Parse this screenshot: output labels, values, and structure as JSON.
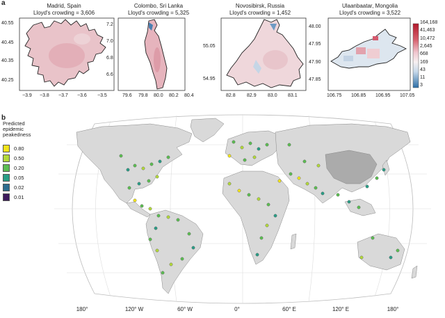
{
  "panel_a": {
    "letter": "a",
    "cities": [
      {
        "name": "Madrid, Spain",
        "crowding": "Lloyd's crowding = 3,606",
        "x_ticks": [
          "−3.9",
          "−3.8",
          "−3.7",
          "−3.6",
          "−3.5"
        ],
        "y_ticks": [
          "40.55",
          "40.45",
          "40.35",
          "40.25"
        ]
      },
      {
        "name": "Colombo, Sri Lanka",
        "crowding": "Lloyd's crowding = 5,325",
        "x_ticks": [
          "79.6",
          "79.8",
          "80.0",
          "80.2",
          "80.4"
        ],
        "y_ticks": [
          "7.2",
          "7.0",
          "6.8",
          "6.6"
        ]
      },
      {
        "name": "Novosibirsk, Russia",
        "crowding": "Lloyd's crowding = 1,452",
        "x_ticks": [
          "82.8",
          "82.9",
          "83.0",
          "83.1"
        ],
        "y_ticks": [
          "55.05",
          "54.95"
        ]
      },
      {
        "name": "Ulaanbaatar, Mongolia",
        "crowding": "Lloyd's crowding = 3,522",
        "x_ticks": [
          "106.75",
          "106.85",
          "106.95",
          "107.05"
        ],
        "y_ticks": [
          "48.00",
          "47.95",
          "47.90",
          "47.85"
        ]
      }
    ],
    "colorbar_ticks": [
      "164,168",
      "41,463",
      "10,472",
      "2,645",
      "668",
      "169",
      "43",
      "11",
      "3"
    ]
  },
  "panel_b": {
    "letter": "b",
    "legend_title": [
      "Predicted",
      "epidemic",
      "peakedness"
    ],
    "legend": [
      {
        "label": "0.80",
        "color": "#f2e41a"
      },
      {
        "label": "0.50",
        "color": "#b3d93a"
      },
      {
        "label": "0.20",
        "color": "#5cbd52"
      },
      {
        "label": "0.05",
        "color": "#2a9d86"
      },
      {
        "label": "0.02",
        "color": "#2d6c8e"
      },
      {
        "label": "0.01",
        "color": "#3d1a5c"
      }
    ],
    "lon_labels": [
      "180°",
      "120° W",
      "60° W",
      "0°",
      "60° E",
      "120° E",
      "180°"
    ]
  }
}
